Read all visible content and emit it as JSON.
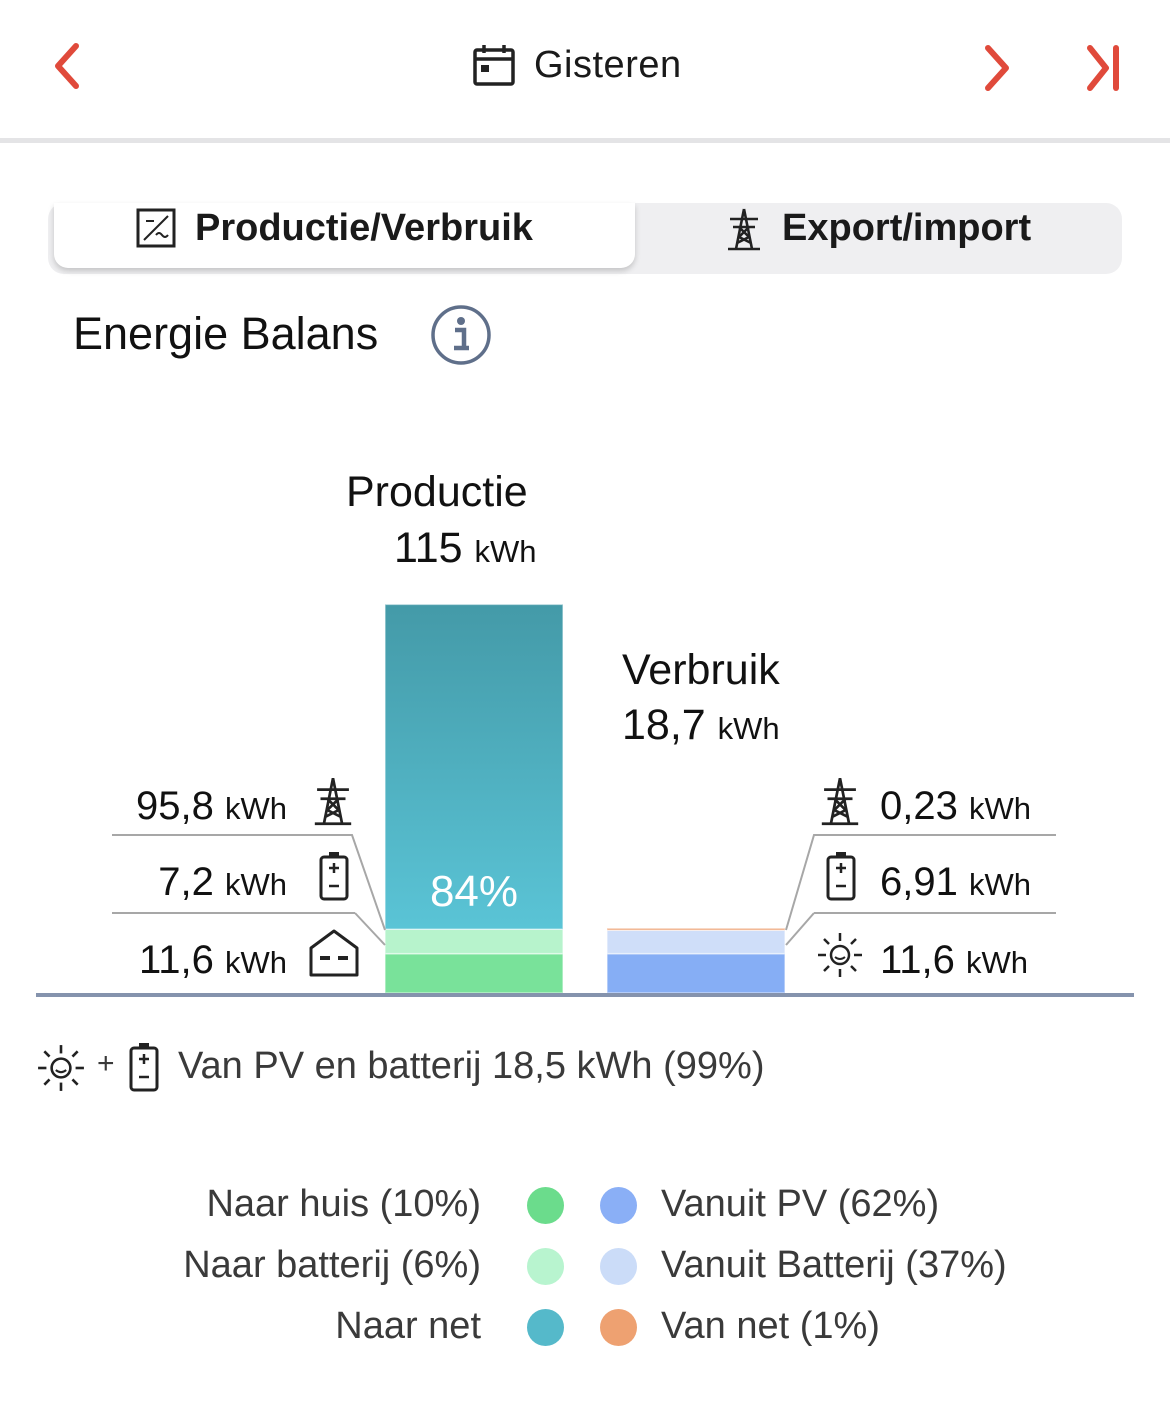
{
  "header": {
    "prev_icon": "chevron-left-icon",
    "calendar_icon": "calendar-icon",
    "date_label": "Gisteren",
    "next_icon": "chevron-right-icon",
    "last_icon": "skip-to-end-icon"
  },
  "tabs": [
    {
      "label": "Productie/Verbruik",
      "icon": "inverter-icon",
      "active": true
    },
    {
      "label": "Export/import",
      "icon": "power-pylon-icon",
      "active": false
    }
  ],
  "section": {
    "title": "Energie Balans",
    "info_icon": "info-icon"
  },
  "chart_data": {
    "type": "bar",
    "production": {
      "title": "Productie",
      "total": "115",
      "unit": "kWh",
      "percent_label": "84%",
      "segments": [
        {
          "name": "Naar huis",
          "value": 11.6,
          "color": "#79e29a"
        },
        {
          "name": "Naar batterij",
          "value": 7.2,
          "color": "#b7f3cc"
        },
        {
          "name": "Naar net",
          "value": 95.8,
          "color": "#4eb2c6"
        }
      ],
      "rows": [
        {
          "value": "95,8",
          "unit": "kWh",
          "icon": "power-pylon-icon"
        },
        {
          "value": "7,2",
          "unit": "kWh",
          "icon": "battery-icon"
        },
        {
          "value": "11,6",
          "unit": "kWh",
          "icon": "house-icon"
        }
      ]
    },
    "consumption": {
      "title": "Verbruik",
      "total": "18,7",
      "unit": "kWh",
      "segments": [
        {
          "name": "Vanuit PV",
          "value": 11.6,
          "color": "#86aef5"
        },
        {
          "name": "Vanuit Batterij",
          "value": 6.91,
          "color": "#cfdef9"
        },
        {
          "name": "Van net",
          "value": 0.23,
          "color": "#eea072"
        }
      ],
      "rows": [
        {
          "value": "0,23",
          "unit": "kWh",
          "icon": "power-pylon-icon"
        },
        {
          "value": "6,91",
          "unit": "kWh",
          "icon": "battery-icon"
        },
        {
          "value": "11,6",
          "unit": "kWh",
          "icon": "sun-icon"
        }
      ]
    }
  },
  "summary": {
    "text": "Van PV en batterij 18,5 kWh (99%)",
    "plus": "+"
  },
  "legend": {
    "left": [
      {
        "label": "Naar huis (10%)",
        "color": "#6bdc8c"
      },
      {
        "label": "Naar batterij (6%)",
        "color": "#b8f4cf"
      },
      {
        "label": "Naar net",
        "color": "#55b9ca"
      }
    ],
    "right": [
      {
        "label": "Vanuit PV (62%)",
        "color": "#8aaff6"
      },
      {
        "label": "Vanuit Batterij (37%)",
        "color": "#cbdcf8"
      },
      {
        "label": "Van net (1%)",
        "color": "#eea171"
      }
    ]
  }
}
